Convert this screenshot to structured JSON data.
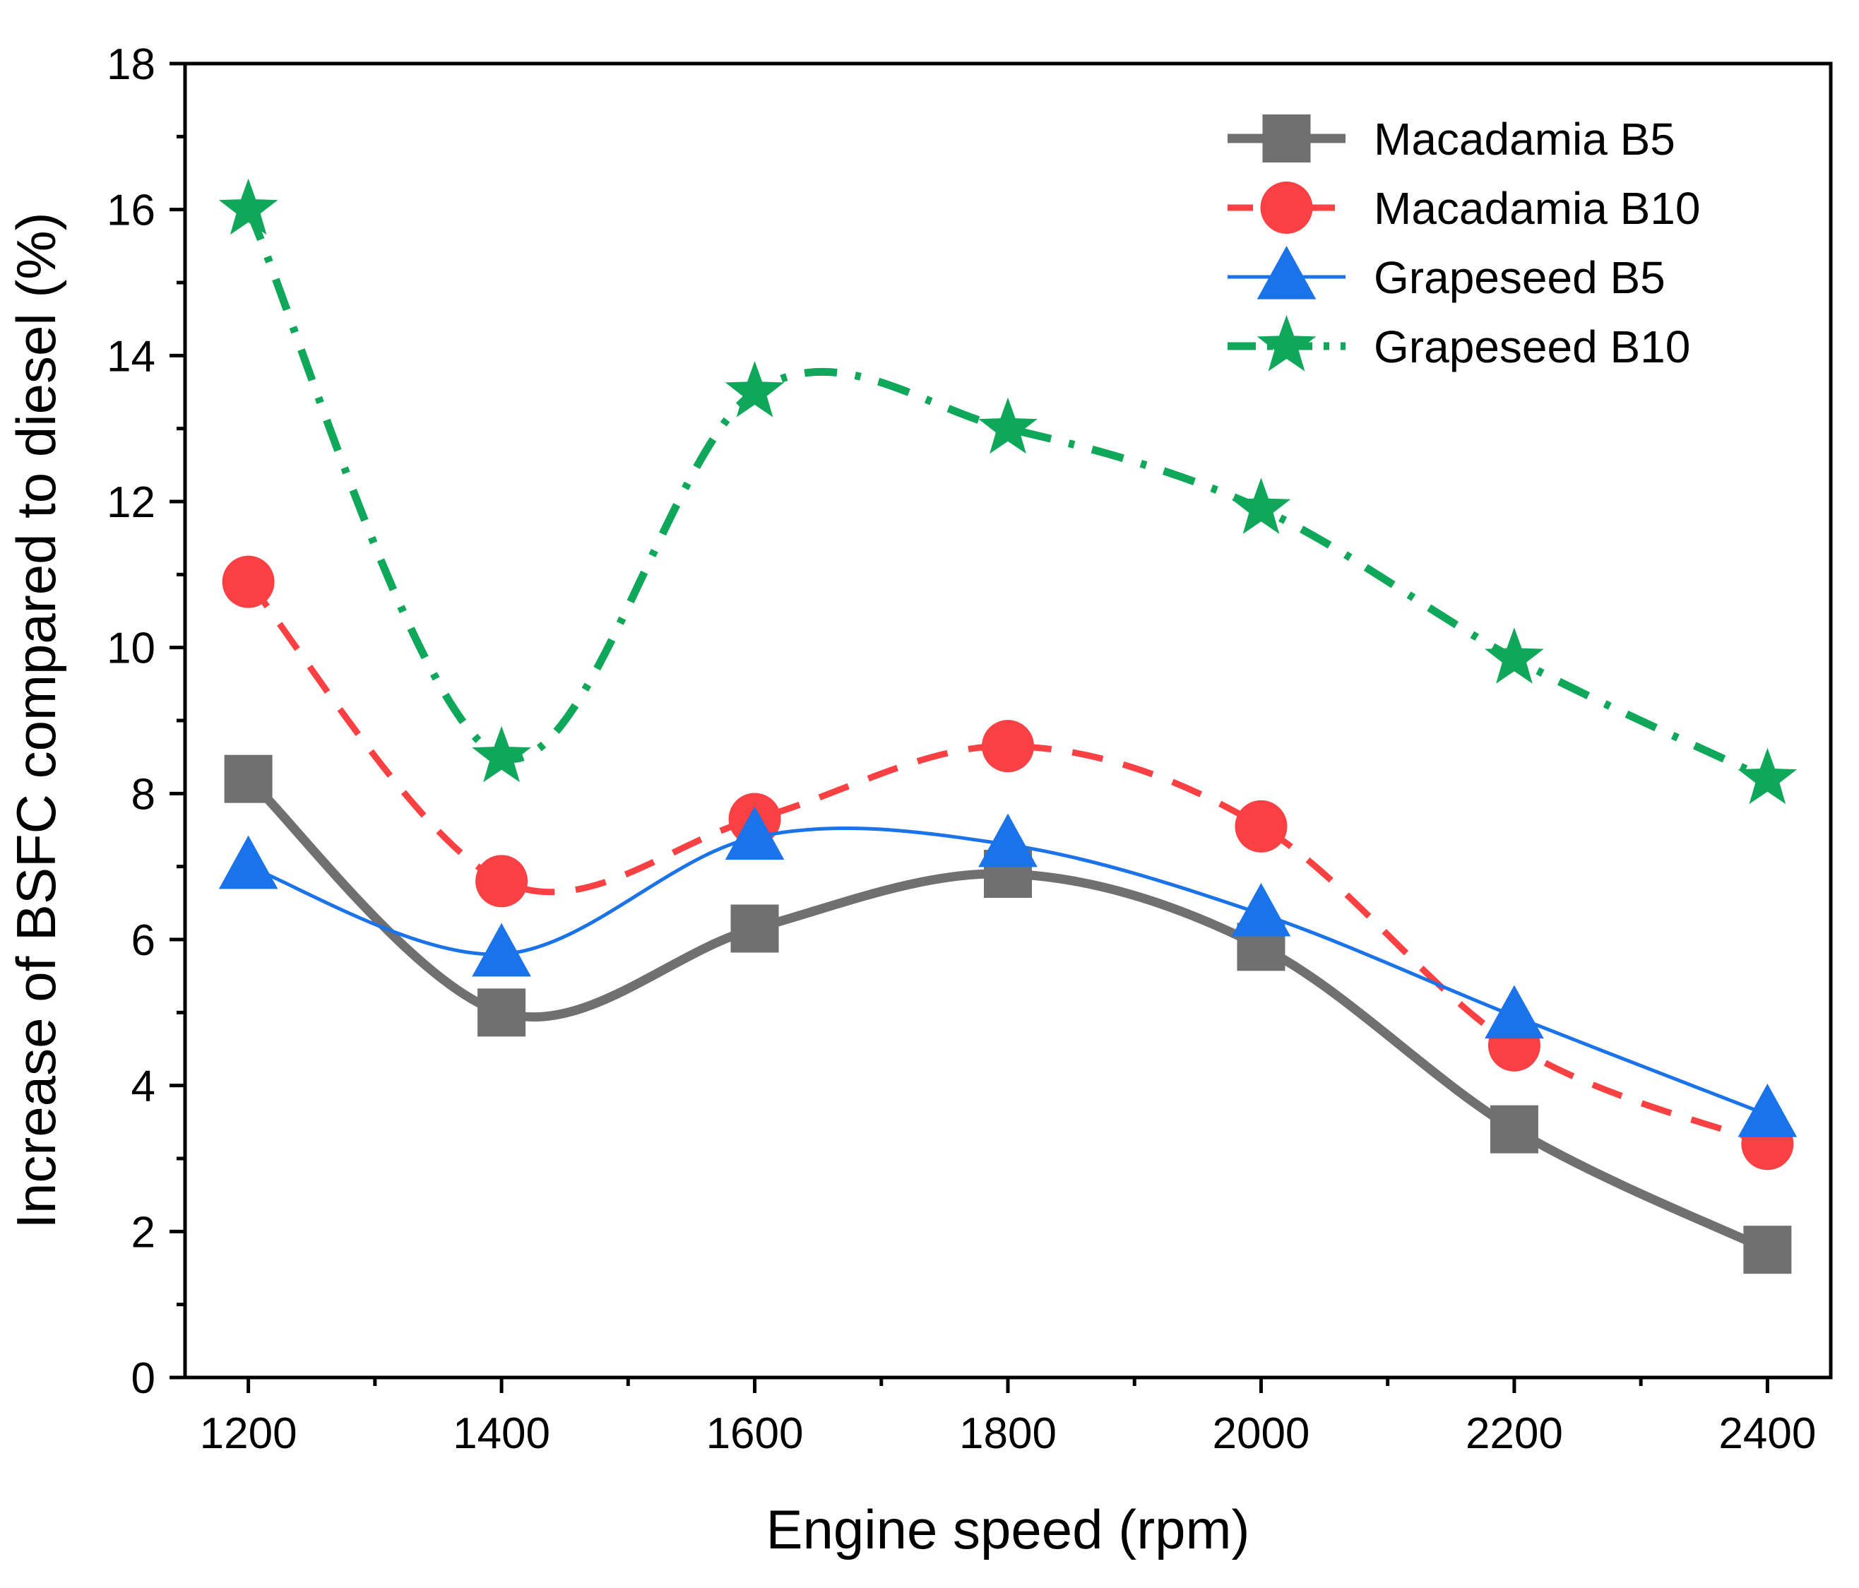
{
  "chart_data": {
    "type": "line",
    "title": "",
    "xlabel": "Engine speed (rpm)",
    "ylabel": "Increase of BSFC compared to diesel (%)",
    "x": [
      1200,
      1400,
      1600,
      1800,
      2000,
      2200,
      2400
    ],
    "xlim": [
      1150,
      2450
    ],
    "ylim": [
      0,
      18
    ],
    "xticks": [
      1200,
      1400,
      1600,
      1800,
      2000,
      2200,
      2400
    ],
    "xtick_labels": [
      "1200",
      "1400",
      "1600",
      "1800",
      "2000",
      "2200",
      "2400"
    ],
    "yticks": [
      0,
      2,
      4,
      6,
      8,
      10,
      12,
      14,
      16,
      18
    ],
    "ytick_labels": [
      "0",
      "2",
      "4",
      "6",
      "8",
      "10",
      "12",
      "14",
      "16",
      "18"
    ],
    "grid": false,
    "legend_position": "top-right",
    "series": [
      {
        "name": "Macadamia B5",
        "values": [
          8.2,
          5.0,
          6.15,
          6.9,
          5.9,
          3.4,
          1.75
        ],
        "color": "#707070",
        "marker": "square",
        "line_style": "solid"
      },
      {
        "name": "Macadamia B10",
        "values": [
          10.9,
          6.8,
          7.65,
          8.65,
          7.55,
          4.55,
          3.2
        ],
        "color": "#f94144",
        "marker": "circle",
        "line_style": "dash"
      },
      {
        "name": "Grapeseed B5",
        "values": [
          7.0,
          5.8,
          7.4,
          7.3,
          6.35,
          4.95,
          3.6
        ],
        "color": "#1a73e8",
        "marker": "triangle",
        "line_style": "solid"
      },
      {
        "name": "Grapeseed B10",
        "values": [
          16.0,
          8.5,
          13.5,
          13.0,
          11.9,
          9.85,
          8.2
        ],
        "color": "#0fa85a",
        "marker": "star",
        "line_style": "dash-dot"
      }
    ]
  }
}
